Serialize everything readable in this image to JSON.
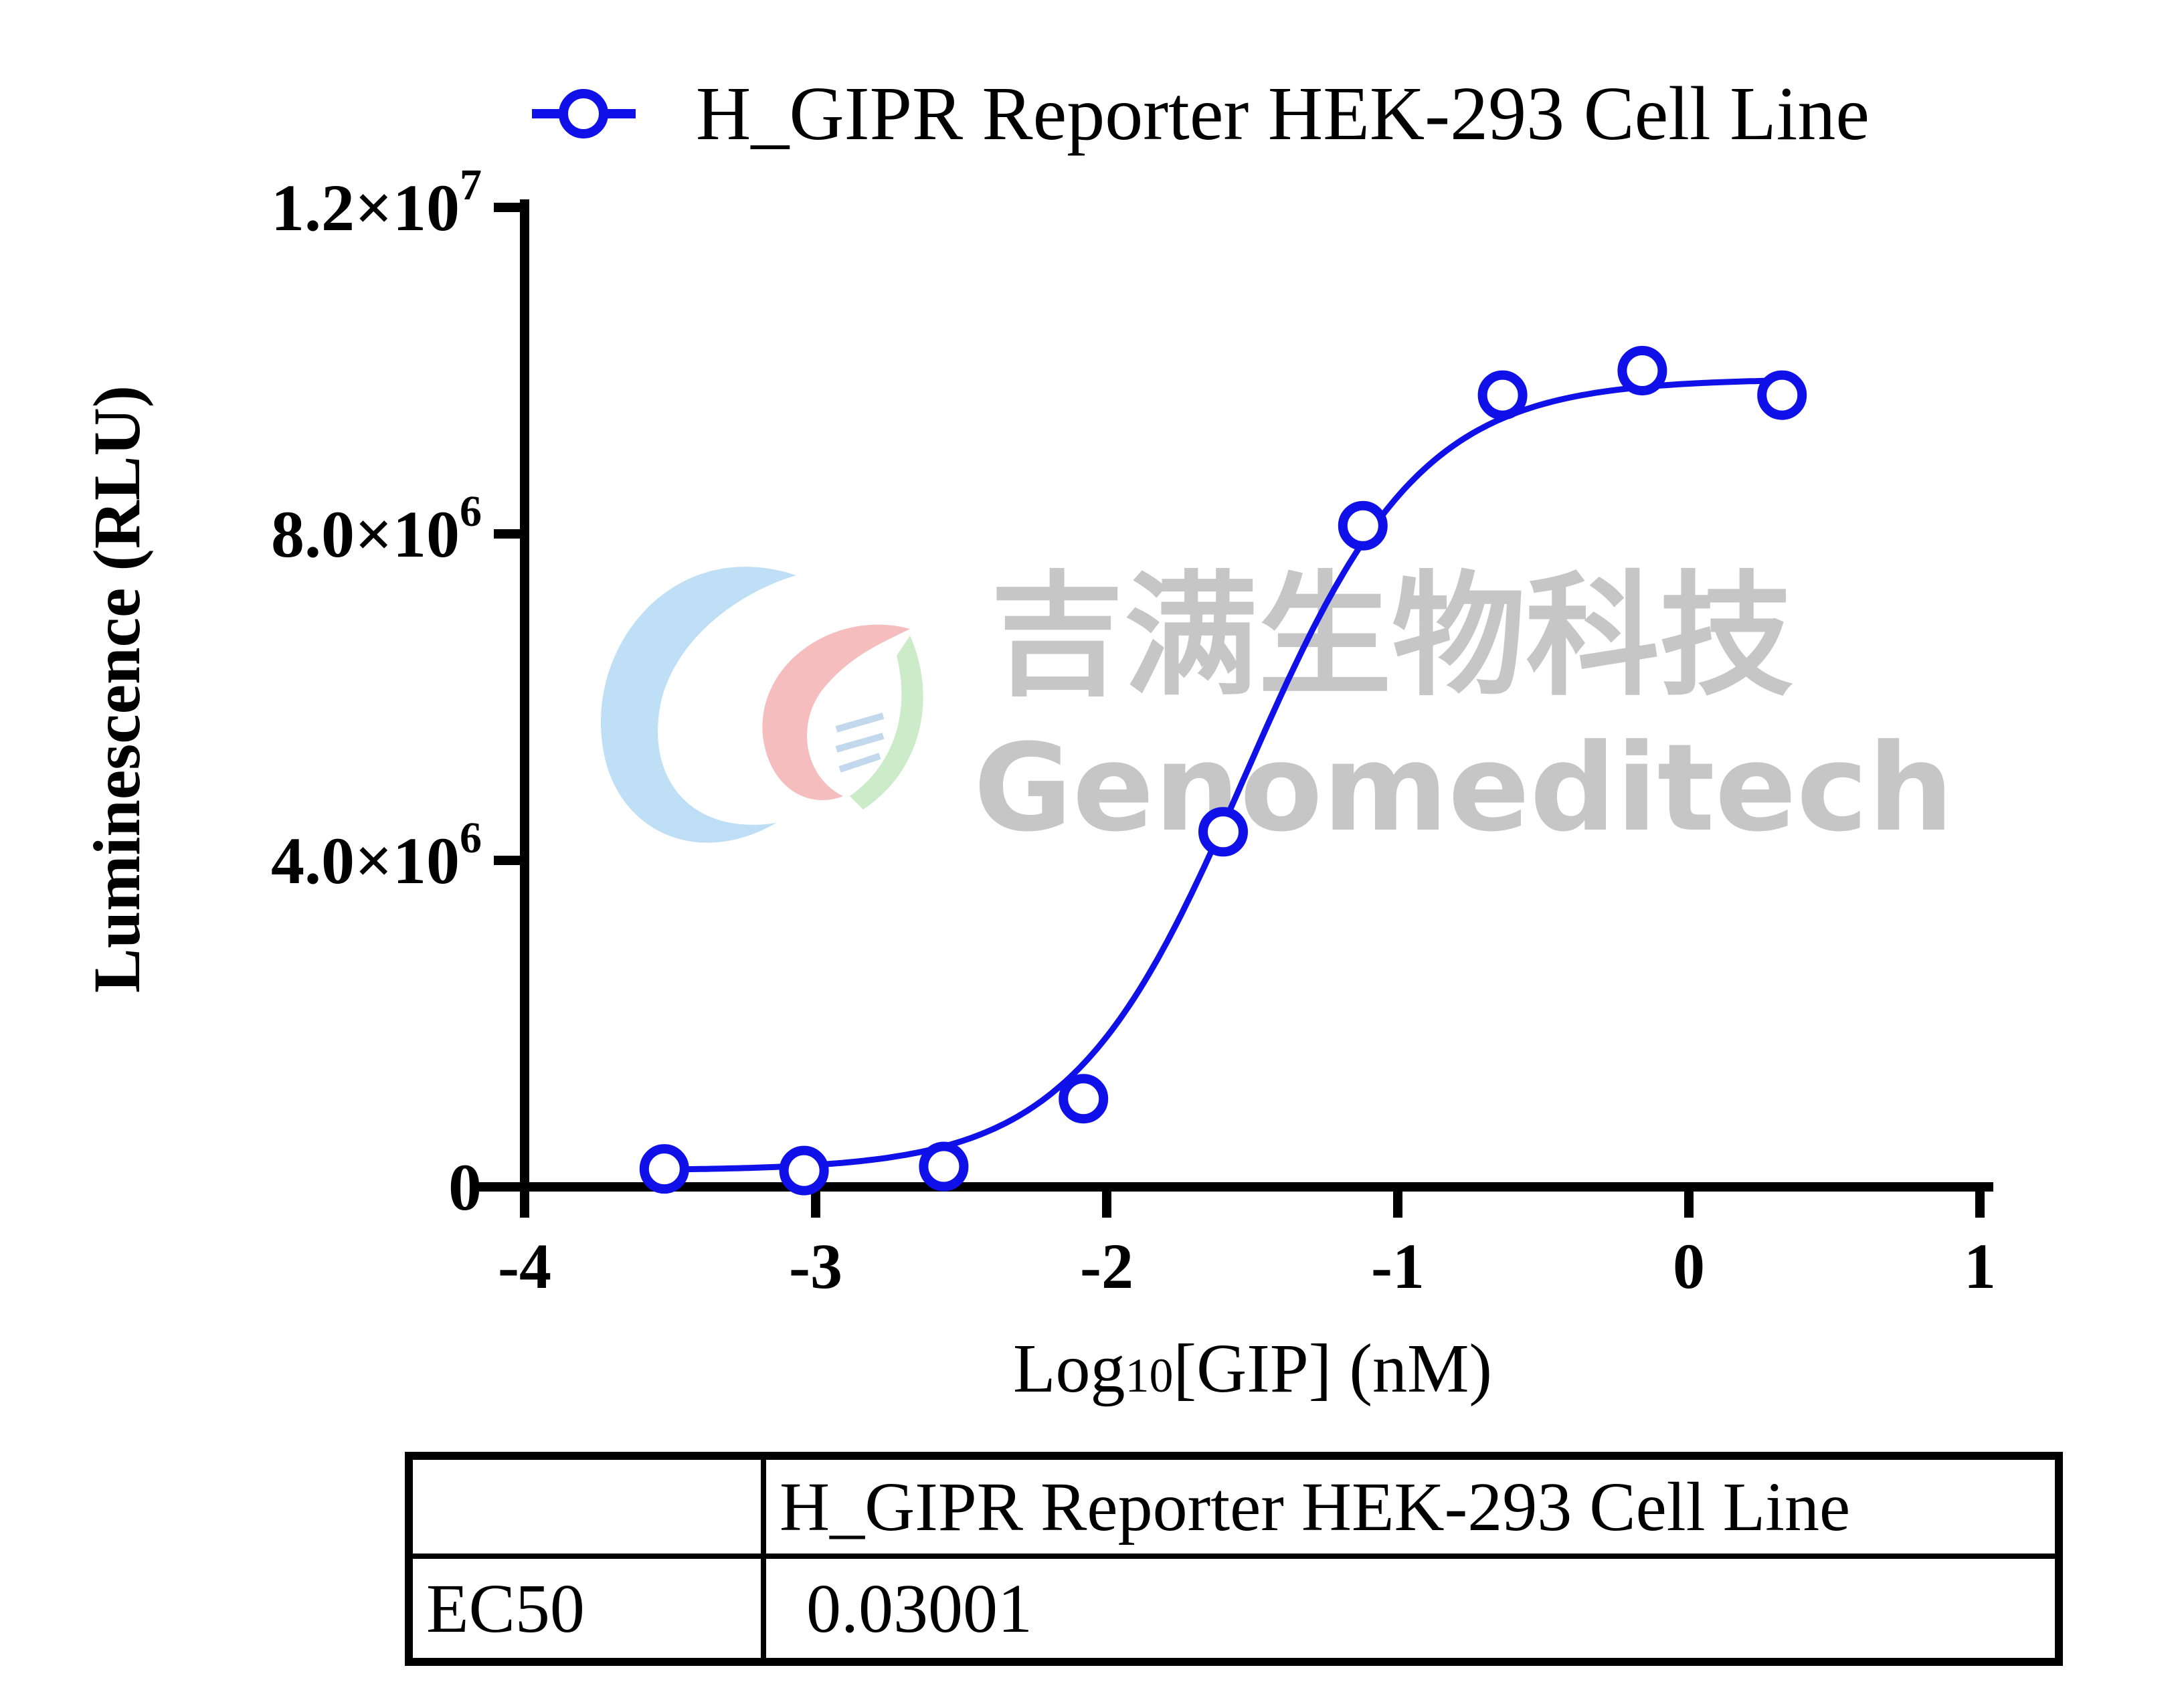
{
  "chart_data": {
    "type": "scatter",
    "title": "",
    "xlabel_main": "Log",
    "xlabel_sub": "10",
    "xlabel_rest": "[GIP] (nM)",
    "ylabel": "Luminescence (RLU)",
    "xlim": [
      -4,
      1
    ],
    "ylim": [
      0,
      12000000
    ],
    "x_ticks": [
      -4,
      -3,
      -2,
      -1,
      0,
      1
    ],
    "x_tick_labels": [
      "-4",
      "-3",
      "-2",
      "-1",
      "0",
      "1"
    ],
    "y_ticks": [
      0,
      4000000,
      8000000,
      12000000
    ],
    "y_tick_labels": [
      {
        "mant": "0",
        "exp": ""
      },
      {
        "mant": "4.0×10",
        "exp": "6"
      },
      {
        "mant": "8.0×10",
        "exp": "6"
      },
      {
        "mant": "1.2×10",
        "exp": "7"
      }
    ],
    "grid": false,
    "legend_position": "top",
    "series": [
      {
        "name": "H_GIPR Reporter HEK-293 Cell Line",
        "color": "#1010e8",
        "marker": "open-circle",
        "x": [
          -3.52,
          -3.04,
          -2.56,
          -2.08,
          -1.6,
          -1.12,
          -0.64,
          -0.16,
          0.32
        ],
        "y": [
          220000,
          200000,
          250000,
          1080000,
          4350000,
          8100000,
          9700000,
          10000000,
          9700000
        ],
        "fit": {
          "model": "4PL",
          "bottom": 200000,
          "top": 9900000,
          "logEC50": -1.523,
          "hill": 1.45
        }
      }
    ]
  },
  "watermark": {
    "cn_text": "吉满生物科技",
    "en_text": "Genomeditech"
  },
  "table": {
    "header": [
      "",
      "H_GIPR Reporter HEK-293 Cell Line"
    ],
    "row_label": "EC50",
    "row_value": "0.03001"
  }
}
